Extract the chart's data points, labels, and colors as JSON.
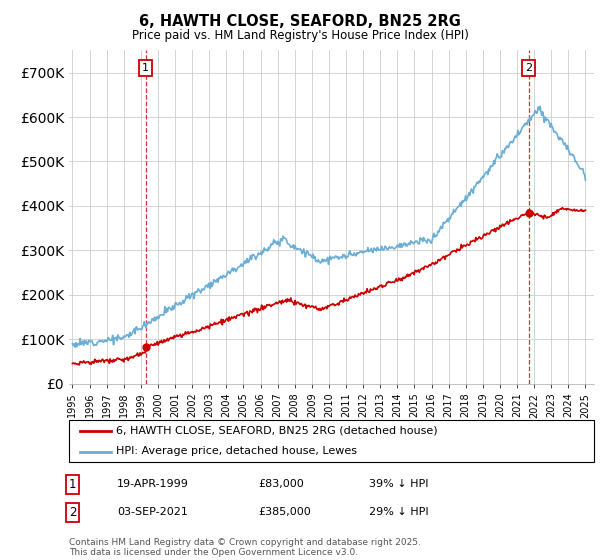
{
  "title": "6, HAWTH CLOSE, SEAFORD, BN25 2RG",
  "subtitle": "Price paid vs. HM Land Registry's House Price Index (HPI)",
  "legend_line1": "6, HAWTH CLOSE, SEAFORD, BN25 2RG (detached house)",
  "legend_line2": "HPI: Average price, detached house, Lewes",
  "annotation1_date": "19-APR-1999",
  "annotation1_price": "£83,000",
  "annotation1_hpi": "39% ↓ HPI",
  "annotation2_date": "03-SEP-2021",
  "annotation2_price": "£385,000",
  "annotation2_hpi": "29% ↓ HPI",
  "footer": "Contains HM Land Registry data © Crown copyright and database right 2025.\nThis data is licensed under the Open Government Licence v3.0.",
  "red_color": "#cc0000",
  "blue_color": "#6baed6",
  "grid_color": "#cccccc",
  "ylim": [
    0,
    750000
  ],
  "yticks": [
    0,
    100000,
    200000,
    300000,
    400000,
    500000,
    600000,
    700000
  ],
  "sale1_x": 1999.29,
  "sale1_y": 83000,
  "sale2_x": 2021.67,
  "sale2_y": 385000,
  "xlim_left": 1994.8,
  "xlim_right": 2025.5
}
